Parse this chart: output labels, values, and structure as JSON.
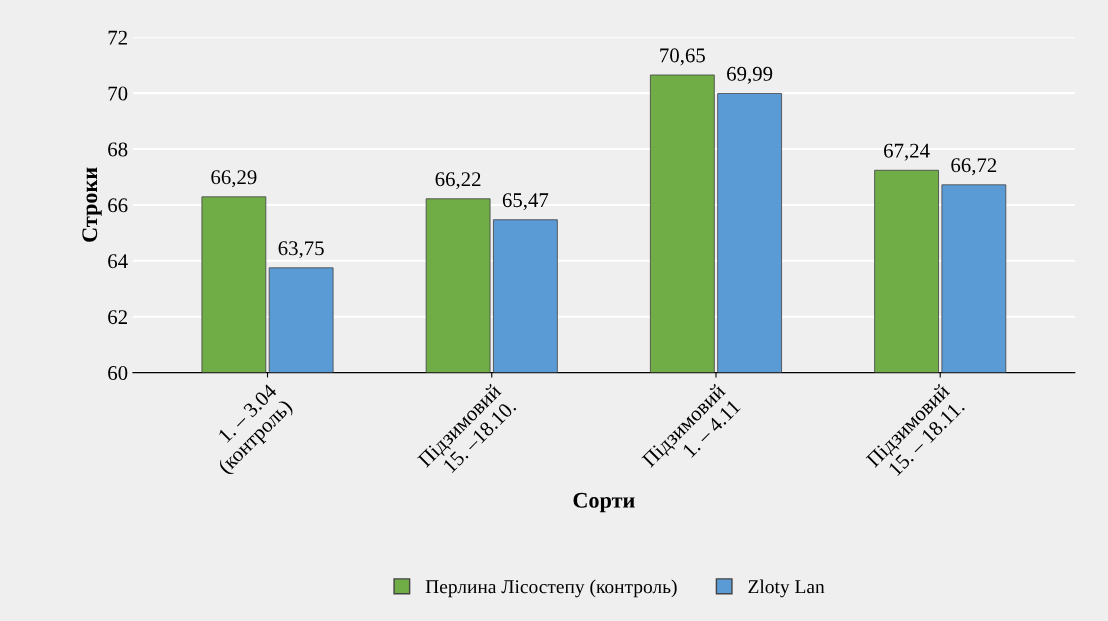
{
  "chart_data": {
    "type": "bar",
    "xlabel": "Сорти",
    "ylabel": "Строки",
    "categories": [
      "1. – 3.04\n(контроль)",
      "Підзимовий\n15. –18.10.",
      "Підзимовий\n1. – 4.11",
      "Підзимовий\n15. – 18.11."
    ],
    "series": [
      {
        "name": "Перлина Лісостепу (контроль)",
        "color": "#70ad47",
        "values": [
          66.29,
          66.22,
          70.65,
          67.24
        ],
        "value_labels": [
          "66,29",
          "66,22",
          "70,65",
          "67,24"
        ]
      },
      {
        "name": "Zloty Lan",
        "color": "#5b9bd5",
        "values": [
          63.75,
          65.47,
          69.99,
          66.72
        ],
        "value_labels": [
          "63,75",
          "65,47",
          "69,99",
          "66,72"
        ]
      }
    ],
    "ylim": [
      60,
      72
    ],
    "yticks": [
      60,
      62,
      64,
      66,
      68,
      70,
      72
    ],
    "grid": "y",
    "legend": "bottom"
  }
}
